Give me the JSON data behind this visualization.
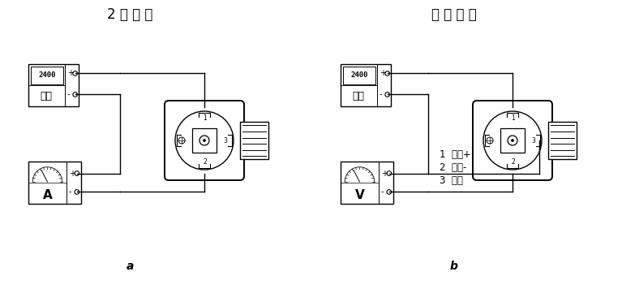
{
  "title_left": "2 线 电 流",
  "title_right": "电 压 输 出",
  "label_a": "a",
  "label_b": "b",
  "legend_1": "1  电源+",
  "legend_2": "2  电源-",
  "legend_3": "3  输出",
  "bg_color": "#ffffff",
  "line_color": "#000000",
  "font_size_title": 12,
  "font_size_label": 10,
  "font_size_small": 8.5
}
